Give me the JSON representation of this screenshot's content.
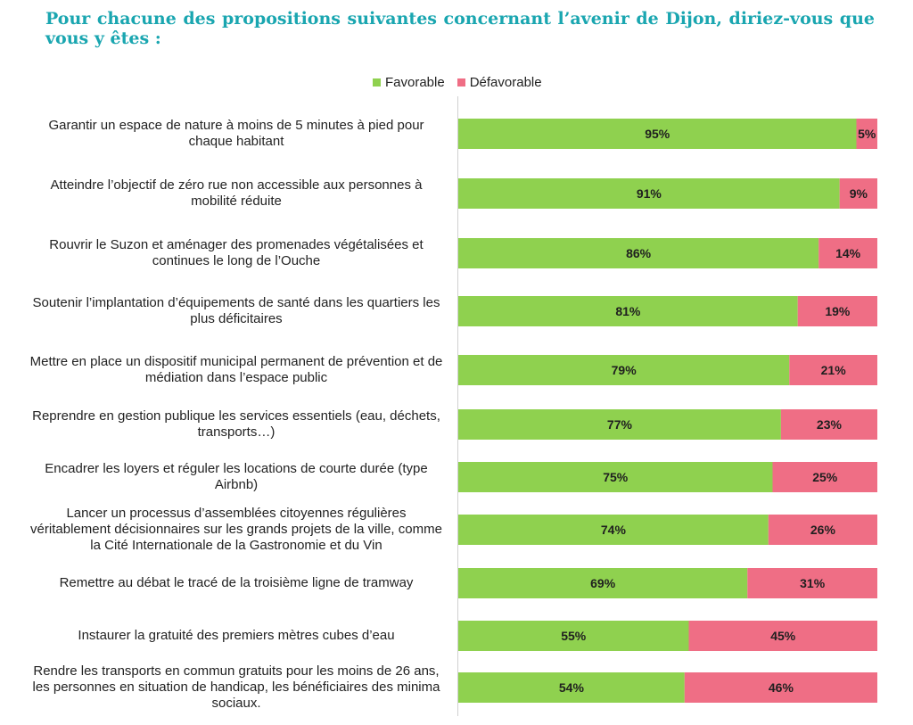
{
  "title": "Pour chacune des propositions suivantes concernant l’avenir de Dijon, diriez-vous que vous y êtes :",
  "colors": {
    "favorable": "#8fd14f",
    "defavorable": "#ef6e85",
    "title": "#1aa6b0"
  },
  "chart_data": {
    "type": "bar",
    "orientation": "horizontal",
    "stacked": true,
    "title": "Pour chacune des propositions suivantes concernant l’avenir de Dijon, diriez-vous que vous y êtes :",
    "legend": [
      "Favorable",
      "Défavorable"
    ],
    "legend_position": "top",
    "xlim": [
      0,
      100
    ],
    "categories": [
      "Garantir un espace de nature à moins de 5 minutes à pied pour chaque habitant",
      "Atteindre l’objectif de zéro rue non accessible aux personnes à mobilité réduite",
      "Rouvrir le Suzon et aménager des promenades végétalisées et continues le long de l’Ouche",
      "Soutenir l’implantation d’équipements de santé dans les quartiers les plus déficitaires",
      "Mettre en place un dispositif municipal permanent de prévention et de médiation dans l’espace public",
      "Reprendre en gestion publique les services essentiels (eau, déchets, transports…)",
      "Encadrer les loyers et réguler les locations de courte durée (type Airbnb)",
      "Lancer un processus d’assemblées citoyennes régulières véritablement décisionnaires sur les grands projets de la ville, comme la Cité Internationale de la Gastronomie et du Vin",
      "Remettre au débat le tracé de la troisième ligne de tramway",
      "Instaurer la gratuité des premiers mètres cubes d’eau",
      "Rendre les transports en commun gratuits pour les moins de 26 ans, les personnes en situation de handicap, les bénéficiaires des minima sociaux."
    ],
    "series": [
      {
        "name": "Favorable",
        "values": [
          95,
          91,
          86,
          81,
          79,
          77,
          75,
          74,
          69,
          55,
          54
        ],
        "labels": [
          "95%",
          "91%",
          "86%",
          "81%",
          "79%",
          "77%",
          "75%",
          "74%",
          "69%",
          "55%",
          "54%"
        ]
      },
      {
        "name": "Défavorable",
        "values": [
          5,
          9,
          14,
          19,
          21,
          23,
          25,
          26,
          31,
          45,
          46
        ],
        "labels": [
          "5%",
          "9%",
          "14%",
          "19%",
          "21%",
          "23%",
          "25%",
          "26%",
          "31%",
          "45%",
          "46%"
        ]
      }
    ]
  }
}
